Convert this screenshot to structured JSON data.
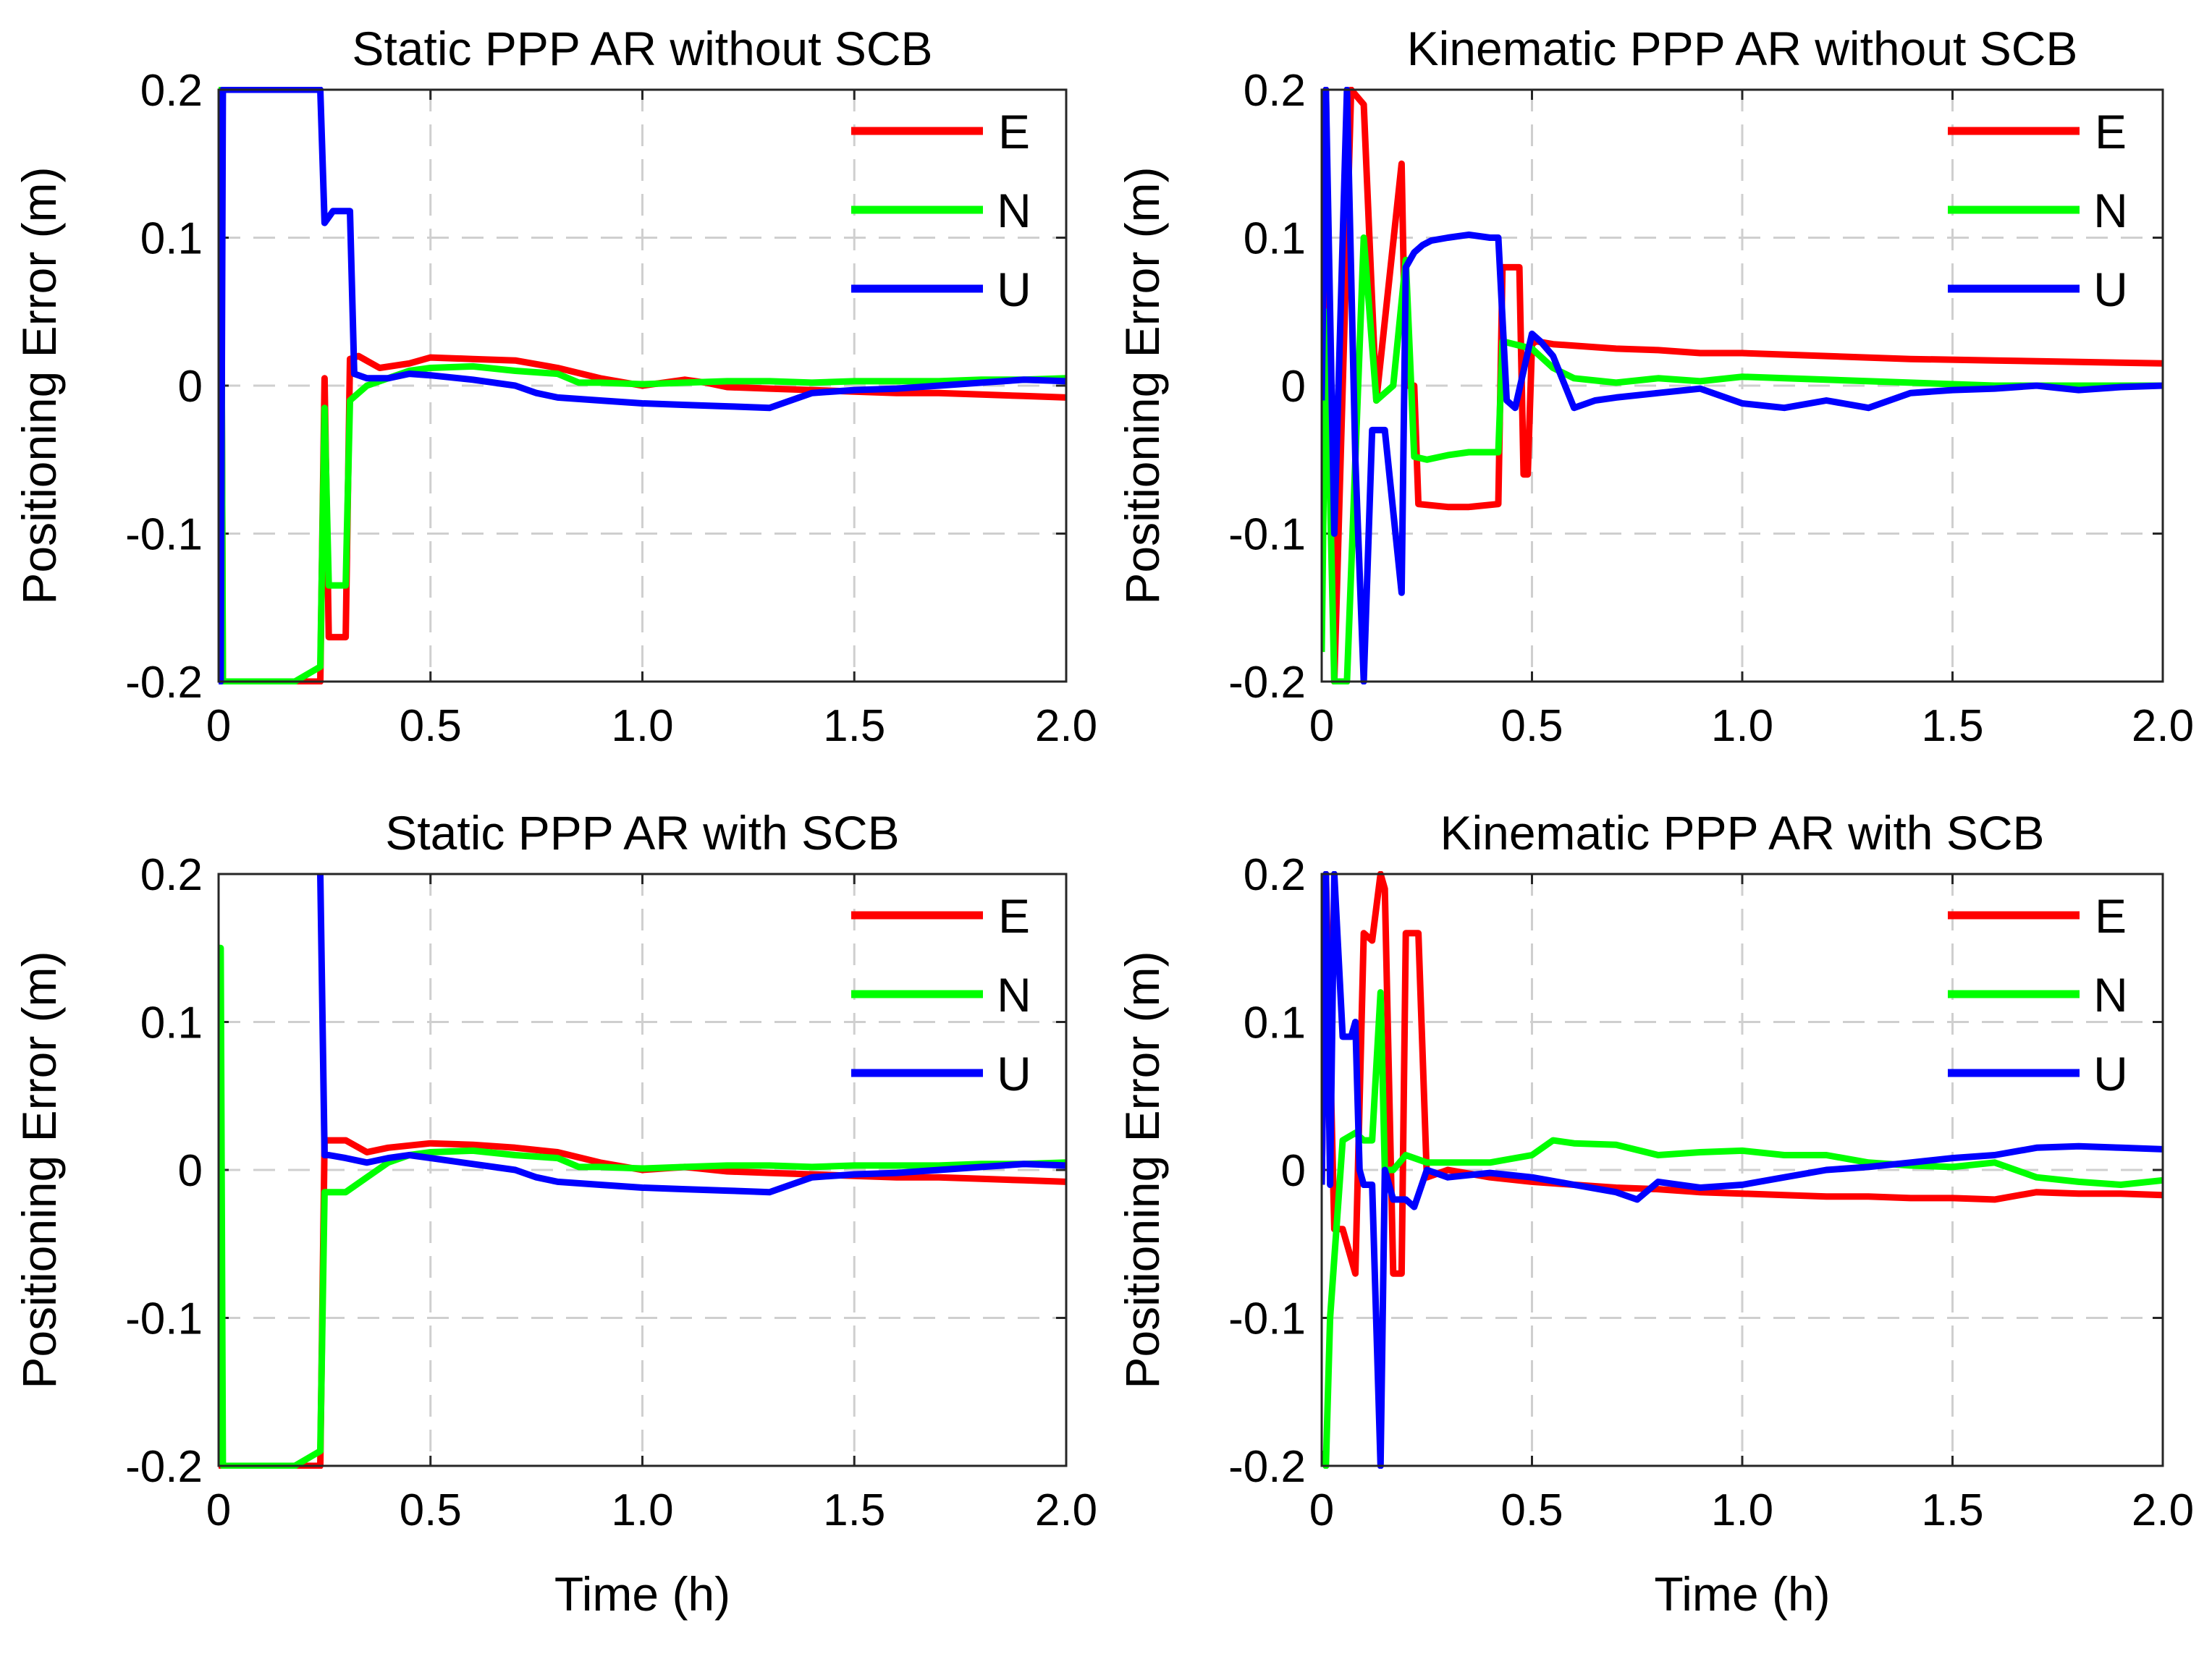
{
  "colors": {
    "E": "#ff0000",
    "N": "#00ff00",
    "U": "#0000ff",
    "grid": "#cfcfcf",
    "axis": "#262626"
  },
  "chart_data": [
    {
      "type": "line",
      "title": "Static PPP AR without SCB",
      "xlabel": "",
      "ylabel": "Positioning Error (m)",
      "xlim": [
        0,
        2.0
      ],
      "ylim": [
        -0.2,
        0.2
      ],
      "xticks": [
        "0",
        "0.5",
        "1.0",
        "1.5",
        "2.0"
      ],
      "yticks": [
        "0.2",
        "0.1",
        "0",
        "-0.1",
        "-0.2"
      ],
      "grid": true,
      "legend": "top-right",
      "series": [
        {
          "name": "E",
          "x": [
            0.0,
            0.005,
            0.01,
            0.18,
            0.24,
            0.25,
            0.26,
            0.27,
            0.3,
            0.31,
            0.33,
            0.38,
            0.45,
            0.5,
            0.6,
            0.7,
            0.8,
            0.9,
            1.0,
            1.1,
            1.15,
            1.2,
            1.3,
            1.4,
            1.5,
            1.6,
            1.7,
            1.8,
            1.9,
            2.0
          ],
          "y": [
            -0.13,
            0.2,
            -0.2,
            -0.2,
            -0.2,
            0.005,
            -0.17,
            -0.17,
            -0.17,
            0.018,
            0.02,
            0.012,
            0.015,
            0.019,
            0.018,
            0.017,
            0.012,
            0.005,
            0.0,
            0.004,
            0.002,
            -0.001,
            -0.002,
            -0.003,
            -0.004,
            -0.005,
            -0.005,
            -0.006,
            -0.007,
            -0.008
          ]
        },
        {
          "name": "N",
          "x": [
            0.0,
            0.005,
            0.01,
            0.18,
            0.24,
            0.25,
            0.26,
            0.3,
            0.31,
            0.35,
            0.4,
            0.45,
            0.5,
            0.6,
            0.7,
            0.8,
            0.85,
            0.9,
            1.0,
            1.1,
            1.2,
            1.3,
            1.4,
            1.5,
            1.6,
            1.7,
            1.8,
            1.9,
            2.0
          ],
          "y": [
            -0.12,
            0.2,
            -0.2,
            -0.2,
            -0.19,
            -0.015,
            -0.135,
            -0.135,
            -0.01,
            0.0,
            0.005,
            0.01,
            0.012,
            0.013,
            0.01,
            0.008,
            0.002,
            0.002,
            0.001,
            0.002,
            0.003,
            0.003,
            0.002,
            0.003,
            0.003,
            0.003,
            0.004,
            0.004,
            0.005
          ]
        },
        {
          "name": "U",
          "x": [
            0.0,
            0.005,
            0.01,
            0.24,
            0.25,
            0.27,
            0.31,
            0.32,
            0.35,
            0.4,
            0.45,
            0.5,
            0.6,
            0.7,
            0.75,
            0.8,
            0.9,
            1.0,
            1.1,
            1.2,
            1.3,
            1.35,
            1.4,
            1.5,
            1.6,
            1.7,
            1.8,
            1.9,
            2.0
          ],
          "y": [
            0.2,
            -0.2,
            0.2,
            0.2,
            0.11,
            0.118,
            0.118,
            0.008,
            0.005,
            0.005,
            0.008,
            0.007,
            0.004,
            0.0,
            -0.005,
            -0.008,
            -0.01,
            -0.012,
            -0.013,
            -0.014,
            -0.015,
            -0.01,
            -0.005,
            -0.003,
            -0.002,
            0.0,
            0.002,
            0.004,
            0.003
          ]
        }
      ]
    },
    {
      "type": "line",
      "title": "Kinematic PPP AR without SCB",
      "xlabel": "",
      "ylabel": "Positioning Error (m)",
      "xlim": [
        0,
        2.0
      ],
      "ylim": [
        -0.2,
        0.2
      ],
      "xticks": [
        "0",
        "0.5",
        "1.0",
        "1.5",
        "2.0"
      ],
      "yticks": [
        "0.2",
        "0.1",
        "0",
        "-0.1",
        "-0.2"
      ],
      "grid": true,
      "legend": "top-right",
      "series": [
        {
          "name": "E",
          "x": [
            0.0,
            0.01,
            0.03,
            0.07,
            0.1,
            0.13,
            0.19,
            0.2,
            0.22,
            0.23,
            0.3,
            0.35,
            0.42,
            0.43,
            0.47,
            0.48,
            0.49,
            0.5,
            0.51,
            0.55,
            0.6,
            0.7,
            0.8,
            0.9,
            1.0,
            1.2,
            1.4,
            1.6,
            1.8,
            2.0
          ],
          "y": [
            -0.01,
            0.2,
            -0.2,
            0.2,
            0.19,
            -0.01,
            0.15,
            0.0,
            0.0,
            -0.08,
            -0.082,
            -0.082,
            -0.08,
            0.08,
            0.08,
            -0.06,
            -0.06,
            0.028,
            0.03,
            0.028,
            0.027,
            0.025,
            0.024,
            0.022,
            0.022,
            0.02,
            0.018,
            0.017,
            0.016,
            0.015
          ]
        },
        {
          "name": "N",
          "x": [
            0.0,
            0.01,
            0.03,
            0.06,
            0.1,
            0.13,
            0.17,
            0.2,
            0.22,
            0.25,
            0.3,
            0.35,
            0.42,
            0.43,
            0.5,
            0.55,
            0.6,
            0.7,
            0.8,
            0.9,
            1.0,
            1.2,
            1.4,
            1.6,
            1.8,
            2.0
          ],
          "y": [
            -0.18,
            0.05,
            -0.2,
            -0.2,
            0.1,
            -0.01,
            0.0,
            0.085,
            -0.048,
            -0.05,
            -0.047,
            -0.045,
            -0.045,
            0.03,
            0.025,
            0.012,
            0.005,
            0.002,
            0.005,
            0.003,
            0.006,
            0.004,
            0.002,
            0.0,
            0.0,
            0.0
          ]
        },
        {
          "name": "U",
          "x": [
            0.0,
            0.01,
            0.03,
            0.06,
            0.08,
            0.1,
            0.12,
            0.15,
            0.19,
            0.2,
            0.22,
            0.24,
            0.26,
            0.3,
            0.35,
            0.4,
            0.42,
            0.44,
            0.46,
            0.5,
            0.52,
            0.55,
            0.6,
            0.65,
            0.7,
            0.8,
            0.9,
            1.0,
            1.1,
            1.2,
            1.3,
            1.4,
            1.5,
            1.6,
            1.7,
            1.8,
            1.9,
            2.0
          ],
          "y": [
            -0.01,
            0.2,
            -0.1,
            0.2,
            -0.05,
            -0.2,
            -0.03,
            -0.03,
            -0.14,
            0.08,
            0.09,
            0.095,
            0.098,
            0.1,
            0.102,
            0.1,
            0.1,
            -0.01,
            -0.015,
            0.035,
            0.03,
            0.02,
            -0.015,
            -0.01,
            -0.008,
            -0.005,
            -0.002,
            -0.012,
            -0.015,
            -0.01,
            -0.015,
            -0.005,
            -0.003,
            -0.002,
            0.0,
            -0.003,
            -0.001,
            0.0
          ]
        }
      ]
    },
    {
      "type": "line",
      "title": "Static PPP AR with SCB",
      "xlabel": "Time (h)",
      "ylabel": "Positioning Error (m)",
      "xlim": [
        0,
        2.0
      ],
      "ylim": [
        -0.2,
        0.2
      ],
      "xticks": [
        "0",
        "0.5",
        "1.0",
        "1.5",
        "2.0"
      ],
      "yticks": [
        "0.2",
        "0.1",
        "0",
        "-0.1",
        "-0.2"
      ],
      "grid": true,
      "legend": "top-right",
      "series": [
        {
          "name": "E",
          "x": [
            0.0,
            0.005,
            0.01,
            0.18,
            0.24,
            0.25,
            0.26,
            0.3,
            0.35,
            0.4,
            0.5,
            0.6,
            0.7,
            0.8,
            0.9,
            1.0,
            1.1,
            1.2,
            1.3,
            1.4,
            1.5,
            1.6,
            1.7,
            1.8,
            1.9,
            2.0
          ],
          "y": [
            -0.15,
            -0.2,
            -0.2,
            -0.2,
            -0.2,
            0.02,
            0.02,
            0.02,
            0.012,
            0.015,
            0.018,
            0.017,
            0.015,
            0.012,
            0.005,
            0.0,
            0.002,
            -0.001,
            -0.002,
            -0.003,
            -0.004,
            -0.005,
            -0.005,
            -0.006,
            -0.007,
            -0.008
          ]
        },
        {
          "name": "N",
          "x": [
            0.0,
            0.005,
            0.01,
            0.18,
            0.24,
            0.25,
            0.3,
            0.35,
            0.4,
            0.45,
            0.5,
            0.6,
            0.7,
            0.8,
            0.85,
            0.9,
            1.0,
            1.1,
            1.2,
            1.3,
            1.4,
            1.5,
            1.6,
            1.7,
            1.8,
            1.9,
            2.0
          ],
          "y": [
            0.15,
            0.15,
            -0.2,
            -0.2,
            -0.19,
            -0.015,
            -0.015,
            -0.005,
            0.005,
            0.01,
            0.012,
            0.013,
            0.01,
            0.008,
            0.002,
            0.002,
            0.001,
            0.002,
            0.003,
            0.003,
            0.002,
            0.003,
            0.003,
            0.003,
            0.004,
            0.004,
            0.005
          ]
        },
        {
          "name": "U",
          "x": [
            0.24,
            0.25,
            0.26,
            0.3,
            0.35,
            0.4,
            0.45,
            0.5,
            0.6,
            0.7,
            0.75,
            0.8,
            0.9,
            1.0,
            1.1,
            1.2,
            1.3,
            1.35,
            1.4,
            1.5,
            1.6,
            1.7,
            1.8,
            1.9,
            2.0
          ],
          "y": [
            0.2,
            0.01,
            0.01,
            0.008,
            0.005,
            0.008,
            0.01,
            0.008,
            0.004,
            0.0,
            -0.005,
            -0.008,
            -0.01,
            -0.012,
            -0.013,
            -0.014,
            -0.015,
            -0.01,
            -0.005,
            -0.003,
            -0.002,
            0.0,
            0.002,
            0.004,
            0.003
          ]
        }
      ]
    },
    {
      "type": "line",
      "title": "Kinematic PPP AR with SCB",
      "xlabel": "Time (h)",
      "ylabel": "Positioning Error (m)",
      "xlim": [
        0,
        2.0
      ],
      "ylim": [
        -0.2,
        0.2
      ],
      "xticks": [
        "0",
        "0.5",
        "1.0",
        "1.5",
        "2.0"
      ],
      "yticks": [
        "0.2",
        "0.1",
        "0",
        "-0.1",
        "-0.2"
      ],
      "grid": true,
      "legend": "top-right",
      "series": [
        {
          "name": "E",
          "x": [
            0.0,
            0.01,
            0.03,
            0.05,
            0.08,
            0.1,
            0.12,
            0.14,
            0.15,
            0.17,
            0.19,
            0.2,
            0.23,
            0.25,
            0.3,
            0.4,
            0.5,
            0.6,
            0.7,
            0.8,
            0.9,
            1.0,
            1.1,
            1.2,
            1.3,
            1.4,
            1.5,
            1.6,
            1.7,
            1.8,
            1.9,
            2.0
          ],
          "y": [
            -0.01,
            0.2,
            -0.04,
            -0.04,
            -0.07,
            0.16,
            0.155,
            0.2,
            0.19,
            -0.07,
            -0.07,
            0.16,
            0.16,
            -0.005,
            0.0,
            -0.005,
            -0.008,
            -0.01,
            -0.012,
            -0.013,
            -0.015,
            -0.016,
            -0.017,
            -0.018,
            -0.018,
            -0.019,
            -0.019,
            -0.02,
            -0.015,
            -0.016,
            -0.016,
            -0.017
          ]
        },
        {
          "name": "N",
          "x": [
            0.0,
            0.01,
            0.02,
            0.05,
            0.08,
            0.1,
            0.12,
            0.14,
            0.15,
            0.17,
            0.2,
            0.25,
            0.3,
            0.4,
            0.5,
            0.55,
            0.6,
            0.7,
            0.8,
            0.9,
            1.0,
            1.1,
            1.2,
            1.3,
            1.4,
            1.5,
            1.6,
            1.7,
            1.8,
            1.9,
            2.0
          ],
          "y": [
            -0.19,
            -0.2,
            -0.1,
            0.02,
            0.025,
            0.02,
            0.02,
            0.12,
            0.0,
            0.0,
            0.01,
            0.005,
            0.005,
            0.005,
            0.01,
            0.02,
            0.018,
            0.017,
            0.01,
            0.012,
            0.013,
            0.01,
            0.01,
            0.005,
            0.003,
            0.002,
            0.005,
            -0.005,
            -0.008,
            -0.01,
            -0.007
          ]
        },
        {
          "name": "U",
          "x": [
            0.0,
            0.01,
            0.02,
            0.03,
            0.05,
            0.07,
            0.08,
            0.09,
            0.1,
            0.12,
            0.14,
            0.15,
            0.17,
            0.2,
            0.22,
            0.25,
            0.3,
            0.4,
            0.5,
            0.6,
            0.7,
            0.75,
            0.8,
            0.9,
            1.0,
            1.1,
            1.2,
            1.3,
            1.4,
            1.5,
            1.6,
            1.7,
            1.8,
            1.9,
            2.0
          ],
          "y": [
            -0.01,
            0.2,
            -0.01,
            0.2,
            0.09,
            0.09,
            0.1,
            0.0,
            -0.01,
            -0.01,
            -0.2,
            0.0,
            -0.02,
            -0.02,
            -0.025,
            0.0,
            -0.005,
            -0.002,
            -0.005,
            -0.01,
            -0.015,
            -0.02,
            -0.008,
            -0.012,
            -0.01,
            -0.005,
            0.0,
            0.002,
            0.005,
            0.008,
            0.01,
            0.015,
            0.016,
            0.015,
            0.014
          ]
        }
      ]
    }
  ]
}
